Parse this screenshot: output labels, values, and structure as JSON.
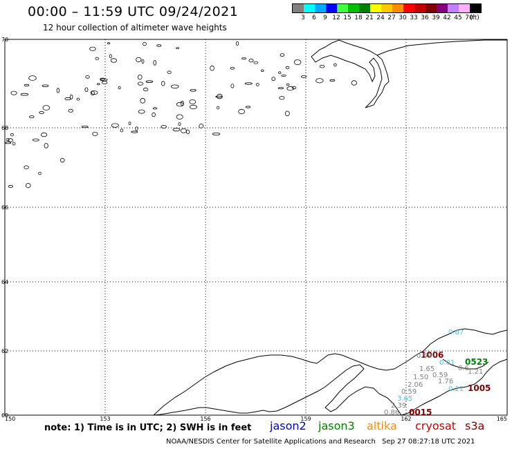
{
  "title": "00:00 – 11:59 UTC 09/24/2021",
  "subtitle": "12 hour collection of altimeter wave heights",
  "legend": {
    "colors": [
      "#808080",
      "#00ffff",
      "#00a8ff",
      "#0000ff",
      "#40ff40",
      "#00c000",
      "#008000",
      "#ffff00",
      "#ffc800",
      "#ff8c00",
      "#ff0000",
      "#c00000",
      "#800000",
      "#800080",
      "#c080ff",
      "#ffb0ff",
      "#000000"
    ],
    "labels": [
      "3",
      "6",
      "9",
      "12",
      "15",
      "18",
      "21",
      "24",
      "27",
      "30",
      "33",
      "36",
      "39",
      "42",
      "45",
      "70",
      "(ft)"
    ]
  },
  "map": {
    "lat_labels": [
      "70",
      "68",
      "66",
      "64",
      "62",
      "60"
    ],
    "lon_labels": [
      "150",
      "153",
      "156",
      "159",
      "162",
      "165"
    ],
    "observations": [
      {
        "text": "0.87",
        "color": "#40c8e0"
      },
      {
        "text": "1006",
        "color": "#800000"
      },
      {
        "text": "0.59",
        "color": "#808080"
      },
      {
        "text": "0.01",
        "color": "#40c8e0"
      },
      {
        "text": "0523",
        "color": "#008000"
      },
      {
        "text": "1.65",
        "color": "#808080"
      },
      {
        "text": "0.6",
        "color": "#808080"
      },
      {
        "text": "1.21",
        "color": "#808080"
      },
      {
        "text": "1.50",
        "color": "#808080"
      },
      {
        "text": "0.59",
        "color": "#808080"
      },
      {
        "text": "1.76",
        "color": "#808080"
      },
      {
        "text": "2.06",
        "color": "#808080"
      },
      {
        "text": "0.21",
        "color": "#40c8e0"
      },
      {
        "text": "1005",
        "color": "#800000"
      },
      {
        "text": "0.59",
        "color": "#808080"
      },
      {
        "text": "3.65",
        "color": "#40c8e0"
      },
      {
        "text": "2.39",
        "color": "#808080"
      },
      {
        "text": "0.86",
        "color": "#808080"
      },
      {
        "text": "0015",
        "color": "#800000"
      }
    ]
  },
  "footer": {
    "note": "note: 1) Time is in UTC; 2) SWH is in feet",
    "satellites": [
      {
        "name": "jason2",
        "color": "#0000cc"
      },
      {
        "name": "jason3",
        "color": "#008000"
      },
      {
        "name": "altika",
        "color": "#ff8c00"
      },
      {
        "name": "cryosat",
        "color": "#cc0000"
      },
      {
        "name": "s3a",
        "color": "#800000"
      }
    ],
    "credit": "NOAA/NESDIS Center for Satellite Applications and Research",
    "timestamp": "Sep 27 08:27:18 UTC 2021"
  }
}
